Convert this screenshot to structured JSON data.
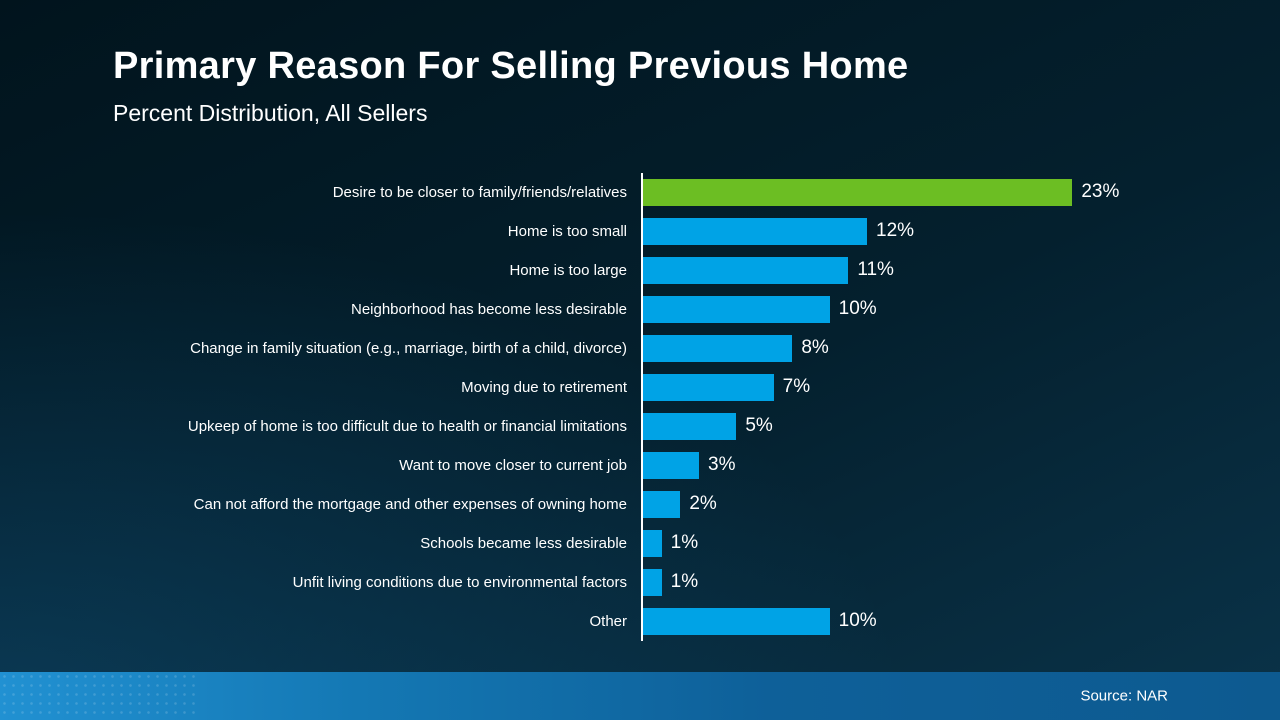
{
  "header": {
    "title": "Primary Reason For Selling Previous Home",
    "subtitle": "Percent Distribution, All Sellers"
  },
  "footer": {
    "source": "Source: NAR"
  },
  "colors": {
    "highlight_bar": "#6cbe23",
    "bar": "#00a3e6",
    "axis_line": "#ffffff",
    "background_top": "#01141d",
    "background_bottom": "#0a3349",
    "footer_band_left": "#2191d2",
    "footer_band_right": "#0d5a90",
    "text": "#ffffff"
  },
  "chart_data": {
    "type": "bar",
    "orientation": "horizontal",
    "title": "Primary Reason For Selling Previous Home",
    "subtitle": "Percent Distribution, All Sellers",
    "categories": [
      "Desire to be closer to family/friends/relatives",
      "Home is too small",
      "Home is too large",
      "Neighborhood has become less desirable",
      "Change in family situation (e.g., marriage, birth of a child, divorce)",
      "Moving due to retirement",
      "Upkeep of home is too difficult due to health or financial limitations",
      "Want to move closer to current job",
      "Can not afford the mortgage and other expenses of owning home",
      "Schools became less desirable",
      "Unfit living conditions due to environmental factors",
      "Other"
    ],
    "values": [
      23,
      12,
      11,
      10,
      8,
      7,
      5,
      3,
      2,
      1,
      1,
      10
    ],
    "value_labels": [
      "23%",
      "12%",
      "11%",
      "10%",
      "8%",
      "7%",
      "5%",
      "3%",
      "2%",
      "1%",
      "1%",
      "10%"
    ],
    "highlight_index": 0,
    "xlim": [
      0,
      30
    ],
    "grid": false,
    "legend": false,
    "source": "Source: NAR"
  }
}
